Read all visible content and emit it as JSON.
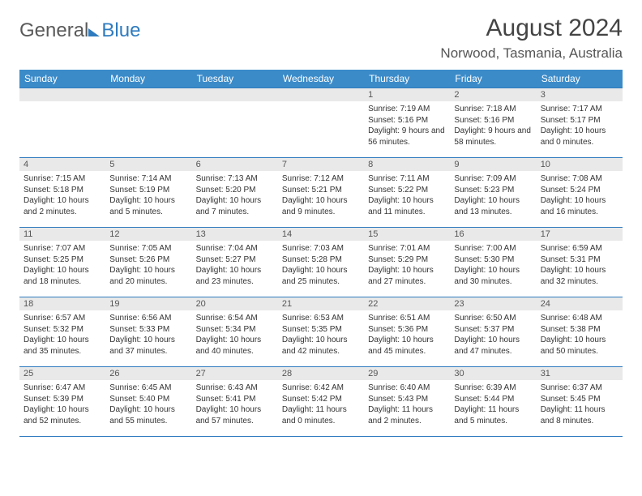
{
  "logo": {
    "part1": "General",
    "part2": "Blue"
  },
  "title": "August 2024",
  "location": "Norwood, Tasmania, Australia",
  "colors": {
    "header_bg": "#3b8bc9",
    "border": "#2f7bbf",
    "daynum_bg": "#e9e9e9",
    "text": "#333333",
    "logo_gray": "#5a5a5a",
    "logo_blue": "#2f7bbf"
  },
  "dayNames": [
    "Sunday",
    "Monday",
    "Tuesday",
    "Wednesday",
    "Thursday",
    "Friday",
    "Saturday"
  ],
  "firstDayIndex": 4,
  "daysInMonth": 31,
  "days": {
    "1": {
      "sunrise": "7:19 AM",
      "sunset": "5:16 PM",
      "daylight": "9 hours and 56 minutes."
    },
    "2": {
      "sunrise": "7:18 AM",
      "sunset": "5:16 PM",
      "daylight": "9 hours and 58 minutes."
    },
    "3": {
      "sunrise": "7:17 AM",
      "sunset": "5:17 PM",
      "daylight": "10 hours and 0 minutes."
    },
    "4": {
      "sunrise": "7:15 AM",
      "sunset": "5:18 PM",
      "daylight": "10 hours and 2 minutes."
    },
    "5": {
      "sunrise": "7:14 AM",
      "sunset": "5:19 PM",
      "daylight": "10 hours and 5 minutes."
    },
    "6": {
      "sunrise": "7:13 AM",
      "sunset": "5:20 PM",
      "daylight": "10 hours and 7 minutes."
    },
    "7": {
      "sunrise": "7:12 AM",
      "sunset": "5:21 PM",
      "daylight": "10 hours and 9 minutes."
    },
    "8": {
      "sunrise": "7:11 AM",
      "sunset": "5:22 PM",
      "daylight": "10 hours and 11 minutes."
    },
    "9": {
      "sunrise": "7:09 AM",
      "sunset": "5:23 PM",
      "daylight": "10 hours and 13 minutes."
    },
    "10": {
      "sunrise": "7:08 AM",
      "sunset": "5:24 PM",
      "daylight": "10 hours and 16 minutes."
    },
    "11": {
      "sunrise": "7:07 AM",
      "sunset": "5:25 PM",
      "daylight": "10 hours and 18 minutes."
    },
    "12": {
      "sunrise": "7:05 AM",
      "sunset": "5:26 PM",
      "daylight": "10 hours and 20 minutes."
    },
    "13": {
      "sunrise": "7:04 AM",
      "sunset": "5:27 PM",
      "daylight": "10 hours and 23 minutes."
    },
    "14": {
      "sunrise": "7:03 AM",
      "sunset": "5:28 PM",
      "daylight": "10 hours and 25 minutes."
    },
    "15": {
      "sunrise": "7:01 AM",
      "sunset": "5:29 PM",
      "daylight": "10 hours and 27 minutes."
    },
    "16": {
      "sunrise": "7:00 AM",
      "sunset": "5:30 PM",
      "daylight": "10 hours and 30 minutes."
    },
    "17": {
      "sunrise": "6:59 AM",
      "sunset": "5:31 PM",
      "daylight": "10 hours and 32 minutes."
    },
    "18": {
      "sunrise": "6:57 AM",
      "sunset": "5:32 PM",
      "daylight": "10 hours and 35 minutes."
    },
    "19": {
      "sunrise": "6:56 AM",
      "sunset": "5:33 PM",
      "daylight": "10 hours and 37 minutes."
    },
    "20": {
      "sunrise": "6:54 AM",
      "sunset": "5:34 PM",
      "daylight": "10 hours and 40 minutes."
    },
    "21": {
      "sunrise": "6:53 AM",
      "sunset": "5:35 PM",
      "daylight": "10 hours and 42 minutes."
    },
    "22": {
      "sunrise": "6:51 AM",
      "sunset": "5:36 PM",
      "daylight": "10 hours and 45 minutes."
    },
    "23": {
      "sunrise": "6:50 AM",
      "sunset": "5:37 PM",
      "daylight": "10 hours and 47 minutes."
    },
    "24": {
      "sunrise": "6:48 AM",
      "sunset": "5:38 PM",
      "daylight": "10 hours and 50 minutes."
    },
    "25": {
      "sunrise": "6:47 AM",
      "sunset": "5:39 PM",
      "daylight": "10 hours and 52 minutes."
    },
    "26": {
      "sunrise": "6:45 AM",
      "sunset": "5:40 PM",
      "daylight": "10 hours and 55 minutes."
    },
    "27": {
      "sunrise": "6:43 AM",
      "sunset": "5:41 PM",
      "daylight": "10 hours and 57 minutes."
    },
    "28": {
      "sunrise": "6:42 AM",
      "sunset": "5:42 PM",
      "daylight": "11 hours and 0 minutes."
    },
    "29": {
      "sunrise": "6:40 AM",
      "sunset": "5:43 PM",
      "daylight": "11 hours and 2 minutes."
    },
    "30": {
      "sunrise": "6:39 AM",
      "sunset": "5:44 PM",
      "daylight": "11 hours and 5 minutes."
    },
    "31": {
      "sunrise": "6:37 AM",
      "sunset": "5:45 PM",
      "daylight": "11 hours and 8 minutes."
    }
  },
  "labels": {
    "sunrise": "Sunrise: ",
    "sunset": "Sunset: ",
    "daylight": "Daylight: "
  }
}
